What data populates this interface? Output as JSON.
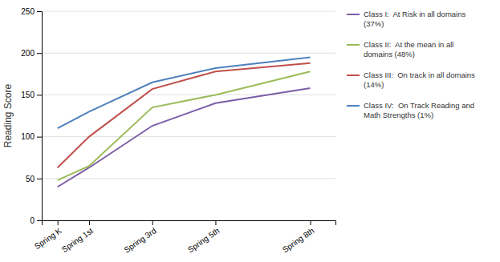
{
  "chart_data": {
    "type": "line",
    "x": [
      0,
      1,
      3,
      5,
      8
    ],
    "xlim": [
      -0.5,
      8.8
    ],
    "xticks": [
      {
        "value": 0,
        "label": "Spring K"
      },
      {
        "value": 1,
        "label": "Spring 1st"
      },
      {
        "value": 3,
        "label": "Spring 3rd"
      },
      {
        "value": 5,
        "label": "Spring 5th"
      },
      {
        "value": 8,
        "label": "Spring 8th"
      }
    ],
    "y_label": "Reading Score",
    "ylim": [
      0,
      250
    ],
    "yticks": [
      0,
      50,
      100,
      150,
      200,
      250
    ],
    "grid": true,
    "legend": "right",
    "series": [
      {
        "name": "Class I:  At Risk in all domains\n(37%)",
        "color": "#7B5EA7",
        "values": [
          40,
          63,
          113,
          140,
          158
        ]
      },
      {
        "name": "Class II:  At the mean in all\ndomains (48%)",
        "color": "#9BBB59",
        "values": [
          48,
          65,
          135,
          150,
          178
        ]
      },
      {
        "name": "Class III:  On track in all domains\n(14%)",
        "color": "#C0504D",
        "values": [
          63,
          100,
          157,
          178,
          188
        ]
      },
      {
        "name": "Class IV:  On Track Reading and\nMath Strengths (1%)",
        "color": "#4F81BD",
        "values": [
          110,
          130,
          165,
          182,
          195
        ]
      }
    ]
  }
}
